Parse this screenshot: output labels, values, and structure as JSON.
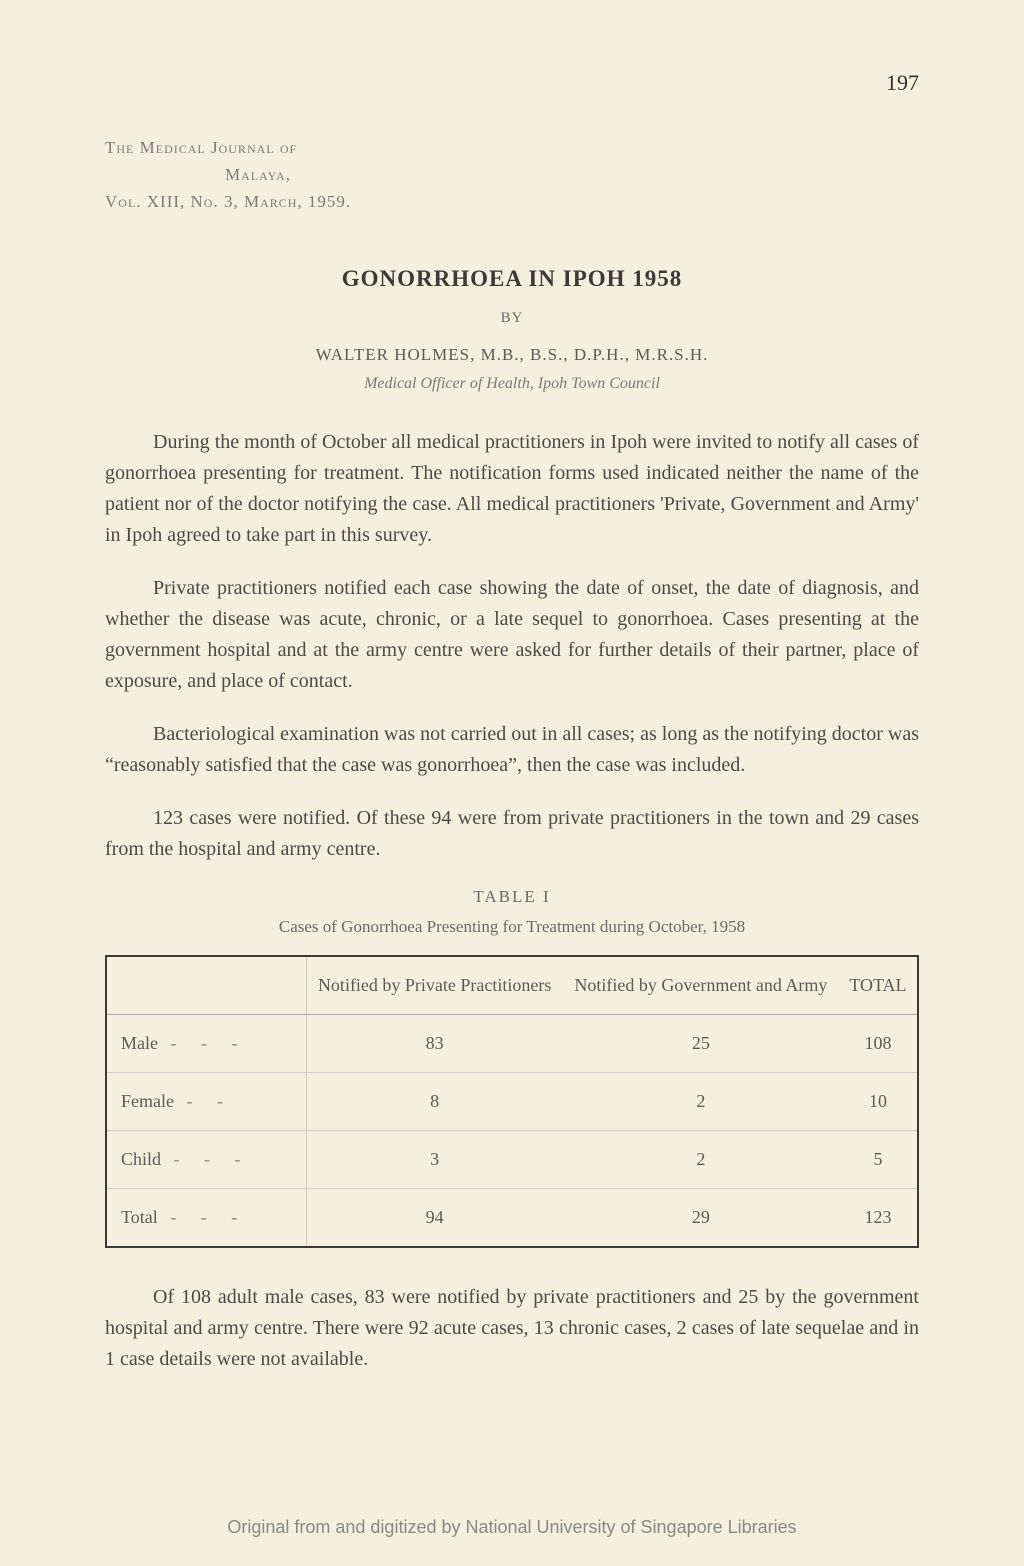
{
  "page_number": "197",
  "journal": {
    "line1": "The Medical Journal of",
    "line2": "Malaya,",
    "line3": "Vol. XIII, No. 3, March, 1959."
  },
  "article": {
    "title": "GONORRHOEA IN IPOH 1958",
    "by": "BY",
    "author": "WALTER HOLMES, M.B., B.S., D.P.H., M.R.S.H.",
    "affiliation": "Medical Officer of Health, Ipoh Town Council"
  },
  "paragraphs": {
    "p1": "During the month of October all medical practitioners in Ipoh were invited to notify all cases of gonorrhoea presenting for treatment. The notification forms used indicated neither the name of the patient nor of the doctor notifying the case. All medical practitioners 'Private, Government and Army' in Ipoh agreed to take part in this survey.",
    "p2": "Private practitioners notified each case showing the date of onset, the date of diagnosis, and whether the disease was acute, chronic, or a late sequel to gonorrhoea. Cases presenting at the government hospital and at the army centre were asked for further details of their partner, place of exposure, and place of contact.",
    "p3": "Bacteriological examination was not carried out in all cases; as long as the notifying doctor was “reasonably satisfied that the case was gonorrhoea”, then the case was included.",
    "p4": "123 cases were notified. Of these 94 were from private practitioners in the town and 29 cases from the hospital and army centre.",
    "p5": "Of 108 adult male cases, 83 were notified by private practitioners and 25 by the government hospital and army centre. There were 92 acute cases, 13 chronic cases, 2 cases of late sequelae and in 1 case details were not available."
  },
  "table": {
    "label": "TABLE I",
    "caption": "Cases of Gonorrhoea Presenting for Treatment during October, 1958",
    "columns": [
      "",
      "Notified by Private Practitioners",
      "Notified by Government and Army",
      "TOTAL"
    ],
    "rows": [
      {
        "label": "Male",
        "dashes": "- - -",
        "cells": [
          "83",
          "25",
          "108"
        ]
      },
      {
        "label": "Female",
        "dashes": "- -",
        "cells": [
          "8",
          "2",
          "10"
        ]
      },
      {
        "label": "Child",
        "dashes": "- - -",
        "cells": [
          "3",
          "2",
          "5"
        ]
      },
      {
        "label": "Total",
        "dashes": "- - -",
        "cells": [
          "94",
          "29",
          "123"
        ]
      }
    ],
    "border_color": "#3a3a3a",
    "inner_border_color": "#cccccc",
    "header_fontsize": 18,
    "cell_fontsize": 18,
    "text_color": "#5a5a5a"
  },
  "footer": "Original from and digitized by National University of Singapore Libraries",
  "colors": {
    "background": "#f5f0dd",
    "body_text": "#4a4a4a",
    "muted_text": "#7a7a7a"
  }
}
